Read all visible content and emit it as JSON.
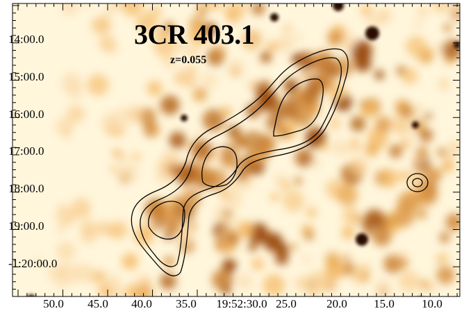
{
  "figure": {
    "title": "3CR 403.1",
    "redshift_label": "z=0.055",
    "dec_ticks": [
      "14:00.0",
      "15:00.0",
      "16:00.0",
      "17:00.0",
      "18:00.0",
      "19:00.0",
      "-1:20:00.0"
    ],
    "ra_ticks": [
      "50.0",
      "45.0",
      "40.0",
      "35.0",
      "19:52:30.0",
      "25.0",
      "20.0",
      "15.0",
      "10.0"
    ],
    "colormap": {
      "low": "#fffdf4",
      "mid": "#f4b45a",
      "high": "#9a4a0c",
      "peak": "#2a0a00"
    },
    "contour_color": "#000000"
  }
}
